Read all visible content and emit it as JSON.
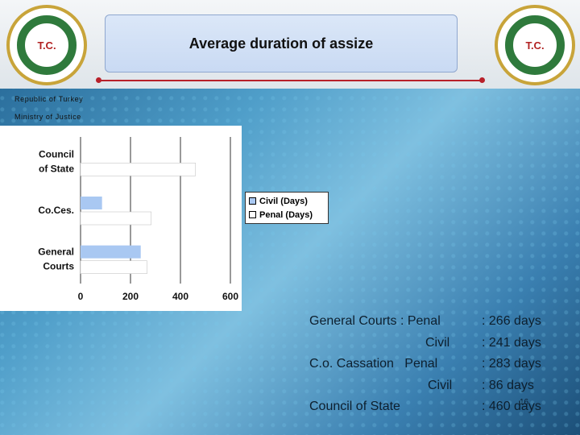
{
  "header": {
    "title": "Average duration of assize",
    "seal_left_text": "T.C.",
    "seal_right_text": "T.C.",
    "ministry_line1": "Republic of Turkey",
    "ministry_line2": "Ministry of Justice"
  },
  "colors": {
    "civil": "#a9c8f2",
    "penal": "#ffffff",
    "accent": "#b8202a"
  },
  "chart_data": {
    "type": "bar",
    "orientation": "horizontal",
    "categories": [
      "Council of State",
      "Co.Ces.",
      "General Courts"
    ],
    "category_labels": [
      [
        "Council",
        "of State"
      ],
      [
        "Co.Ces."
      ],
      [
        "General",
        "Courts"
      ]
    ],
    "series": [
      {
        "name": "Civil (Days)",
        "values": [
          0,
          86,
          241
        ]
      },
      {
        "name": "Penal (Days)",
        "values": [
          460,
          283,
          266
        ]
      }
    ],
    "xlim": [
      0,
      600
    ],
    "xticks": [
      "0",
      "200",
      "400",
      "600"
    ],
    "grid": true,
    "legend_position": "right"
  },
  "summary": {
    "rows": [
      {
        "label": "General Courts : Penal",
        "value": ": 266 days"
      },
      {
        "label": "Civil",
        "value": ": 241 days"
      },
      {
        "label": "C.o. Cassation   Penal",
        "value": ": 283 days"
      },
      {
        "label": "Civil",
        "value": ": 86 days"
      },
      {
        "label": "Council of State",
        "value": ": 460 days"
      }
    ],
    "page_number": "16"
  }
}
